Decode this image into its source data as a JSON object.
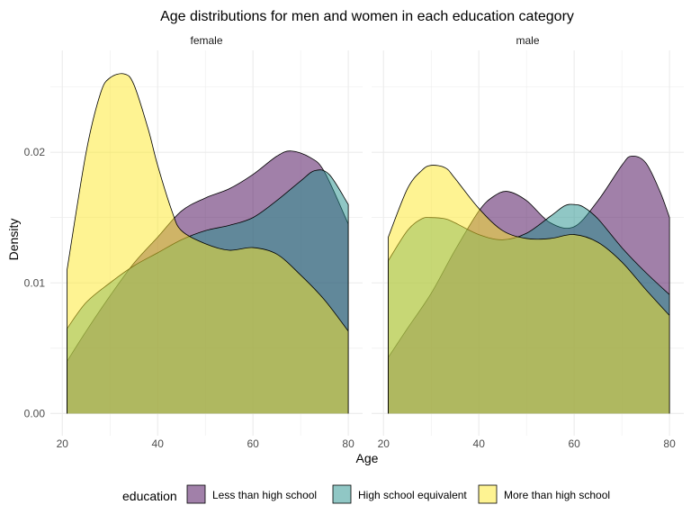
{
  "chart_data": {
    "type": "area",
    "title": "Age distributions for men and women in each education category",
    "xlabel": "Age",
    "ylabel": "Density",
    "xlim": [
      17.5,
      83
    ],
    "ylim": [
      -0.0017,
      0.0278
    ],
    "x_ticks": [
      20,
      40,
      60,
      80
    ],
    "x_tick_labels": [
      "20",
      "40",
      "60",
      "80"
    ],
    "y_ticks": [
      0.0,
      0.01,
      0.02
    ],
    "y_tick_labels": [
      "0.00",
      "0.01",
      "0.02"
    ],
    "grid": true,
    "legend_position": "bottom",
    "legend_title": "education",
    "series": [
      {
        "name": "Less than high school",
        "color": "#440154",
        "fill_opacity": 0.5
      },
      {
        "name": "High school equivalent",
        "color": "#21908C",
        "fill_opacity": 0.5
      },
      {
        "name": "More than high school",
        "color": "#FDE725",
        "fill_opacity": 0.5
      }
    ],
    "facets": [
      {
        "label": "female",
        "curves": [
          {
            "series": "Less than high school",
            "x": [
              21,
              25,
              30,
              35,
              40,
              45,
              50,
              55,
              60,
              65,
              68,
              72,
              75,
              80
            ],
            "y": [
              0.004,
              0.0063,
              0.009,
              0.0115,
              0.0135,
              0.0155,
              0.0165,
              0.0172,
              0.0183,
              0.0197,
              0.0201,
              0.0196,
              0.0185,
              0.0145
            ]
          },
          {
            "series": "High school equivalent",
            "x": [
              21,
              25,
              30,
              35,
              40,
              45,
              50,
              55,
              60,
              65,
              70,
              73,
              76,
              80
            ],
            "y": [
              0.0065,
              0.0085,
              0.01,
              0.0113,
              0.0123,
              0.0133,
              0.014,
              0.0144,
              0.015,
              0.0163,
              0.0178,
              0.0186,
              0.0183,
              0.016
            ]
          },
          {
            "series": "More than high school",
            "x": [
              21,
              25,
              28,
              30,
              33,
              35,
              38,
              40,
              43,
              45,
              50,
              55,
              60,
              65,
              70,
              75,
              80
            ],
            "y": [
              0.011,
              0.02,
              0.0245,
              0.0257,
              0.026,
              0.0252,
              0.0218,
              0.019,
              0.0155,
              0.014,
              0.013,
              0.0125,
              0.0127,
              0.0122,
              0.0106,
              0.0087,
              0.0063
            ]
          }
        ]
      },
      {
        "label": "male",
        "curves": [
          {
            "series": "Less than high school",
            "x": [
              21,
              25,
              30,
              35,
              40,
              43,
              46,
              50,
              55,
              60,
              65,
              70,
              72,
              75,
              78,
              80
            ],
            "y": [
              0.0043,
              0.0065,
              0.0092,
              0.0125,
              0.0155,
              0.0166,
              0.017,
              0.0163,
              0.0146,
              0.0143,
              0.0163,
              0.019,
              0.0197,
              0.0192,
              0.017,
              0.015
            ]
          },
          {
            "series": "High school equivalent",
            "x": [
              21,
              25,
              28,
              30,
              33,
              35,
              40,
              45,
              50,
              55,
              58,
              60,
              62,
              65,
              70,
              75,
              80
            ],
            "y": [
              0.0117,
              0.014,
              0.0149,
              0.015,
              0.0149,
              0.0146,
              0.0137,
              0.0133,
              0.0138,
              0.0151,
              0.0159,
              0.016,
              0.0158,
              0.0149,
              0.0127,
              0.0108,
              0.0091
            ]
          },
          {
            "series": "More than high school",
            "x": [
              21,
              25,
              28,
              30,
              33,
              35,
              40,
              45,
              50,
              55,
              60,
              65,
              70,
              75,
              80
            ],
            "y": [
              0.0135,
              0.0172,
              0.0186,
              0.019,
              0.0188,
              0.018,
              0.0157,
              0.014,
              0.0134,
              0.0134,
              0.0137,
              0.0131,
              0.0116,
              0.0095,
              0.0075
            ]
          }
        ]
      }
    ]
  }
}
